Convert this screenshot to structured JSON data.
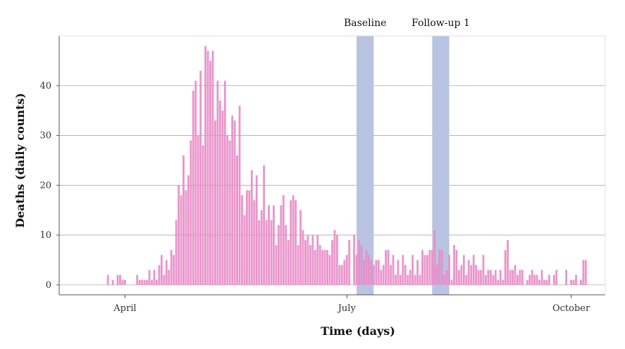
{
  "chart_data": {
    "type": "bar",
    "xlabel": "Time (days)",
    "ylabel": "Deaths (daily counts)",
    "x_start": "2020-03-05",
    "x_end": "2020-10-15",
    "ylim": [
      -2,
      50
    ],
    "yticks": [
      0,
      10,
      20,
      30,
      40
    ],
    "xticks": [
      {
        "date": "2020-04-01",
        "label": "April"
      },
      {
        "date": "2020-07-01",
        "label": "July"
      },
      {
        "date": "2020-10-01",
        "label": "October"
      }
    ],
    "grid": "horizontal",
    "bar_color": "#e88cc8",
    "band_color": "#b9c3e2",
    "bands": [
      {
        "label": "Baseline",
        "start": "2020-07-05",
        "end": "2020-07-12"
      },
      {
        "label": "Follow-up 1",
        "start": "2020-08-05",
        "end": "2020-08-12"
      }
    ],
    "series_start": "2020-03-25",
    "values": [
      2,
      0,
      1,
      0,
      2,
      2,
      1,
      1,
      0,
      0,
      0,
      0,
      2,
      1,
      1,
      1,
      1,
      3,
      1,
      3,
      1,
      4,
      6,
      2,
      5,
      3,
      7,
      6,
      13,
      20,
      18,
      26,
      19,
      22,
      29,
      39,
      41,
      30,
      43,
      28,
      48,
      47,
      45,
      47,
      33,
      41,
      37,
      35,
      41,
      30,
      29,
      34,
      33,
      26,
      36,
      18,
      14,
      19,
      19,
      23,
      17,
      22,
      13,
      15,
      24,
      13,
      16,
      13,
      16,
      8,
      12,
      16,
      18,
      12,
      9,
      17,
      18,
      17,
      8,
      15,
      11,
      9,
      10,
      8,
      10,
      7,
      10,
      8,
      7,
      7,
      7,
      6,
      9,
      11,
      10,
      4,
      4,
      5,
      6,
      9,
      0,
      10,
      6,
      9,
      8,
      5,
      7,
      6,
      5,
      4,
      5,
      5,
      3,
      4,
      7,
      7,
      4,
      6,
      2,
      5,
      2,
      6,
      4,
      2,
      3,
      6,
      2,
      5,
      2,
      7,
      6,
      6,
      7,
      7,
      11,
      4,
      7,
      7,
      2,
      3,
      6,
      1,
      8,
      7,
      3,
      4,
      6,
      2,
      5,
      4,
      6,
      4,
      3,
      3,
      6,
      2,
      3,
      3,
      2,
      3,
      1,
      3,
      1,
      7,
      9,
      3,
      3,
      4,
      2,
      3,
      3,
      0,
      1,
      2,
      3,
      2,
      2,
      1,
      3,
      1,
      1,
      2,
      0,
      2,
      3,
      0,
      0,
      0,
      3,
      0,
      1,
      1,
      2,
      0,
      1,
      5,
      5
    ]
  }
}
